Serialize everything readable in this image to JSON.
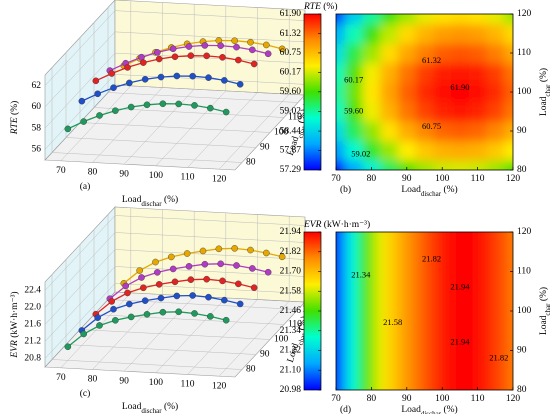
{
  "chart_data": [
    {
      "type": "line3d",
      "panel_label": "(a)",
      "xlabel": [
        "Load",
        "dischar",
        " (%)"
      ],
      "ylabel": [
        "Load",
        "char",
        " (%)"
      ],
      "zlabel": [
        "RTE",
        " (%)"
      ],
      "x": [
        70,
        75,
        80,
        85,
        90,
        95,
        100,
        105,
        110,
        115,
        120
      ],
      "xlim": [
        65,
        125
      ],
      "xticks": [
        70,
        80,
        90,
        100,
        110,
        120
      ],
      "ylim": [
        75,
        125
      ],
      "yticks": [
        80,
        90,
        100,
        110,
        120
      ],
      "zlim": [
        55,
        63
      ],
      "zticks": [
        56,
        58,
        60,
        62
      ],
      "series": [
        {
          "y": 80,
          "color": "#1f9a5c",
          "values": [
            57.3,
            58.07,
            58.72,
            59.25,
            59.67,
            59.96,
            60.14,
            60.2,
            60.14,
            59.96,
            59.67
          ]
        },
        {
          "y": 90,
          "color": "#2050c8",
          "values": [
            58.5,
            59.27,
            59.92,
            60.45,
            60.87,
            61.16,
            61.34,
            61.4,
            61.34,
            61.16,
            60.87
          ]
        },
        {
          "y": 100,
          "color": "#e02424",
          "values": [
            59.0,
            59.77,
            60.42,
            60.95,
            61.37,
            61.66,
            61.84,
            61.9,
            61.84,
            61.66,
            61.37
          ]
        },
        {
          "y": 110,
          "color": "#b03cc4",
          "values": [
            58.55,
            59.32,
            59.97,
            60.5,
            60.92,
            61.21,
            61.39,
            61.45,
            61.39,
            61.21,
            60.92
          ]
        },
        {
          "y": 120,
          "color": "#e6a800",
          "values": [
            57.6,
            58.37,
            59.02,
            59.55,
            59.97,
            60.26,
            60.44,
            60.5,
            60.44,
            60.26,
            59.97
          ]
        }
      ]
    },
    {
      "type": "heatmap",
      "panel_label": "(b)",
      "title": [
        "RTE",
        " (%)"
      ],
      "xlabel": [
        "Load",
        "dischar",
        " (%)"
      ],
      "ylabel": [
        "Load",
        "char",
        " (%)"
      ],
      "x": [
        70,
        75,
        80,
        85,
        90,
        95,
        100,
        105,
        110,
        115,
        120
      ],
      "y": [
        80,
        85,
        90,
        95,
        100,
        105,
        110,
        115,
        120
      ],
      "z": [
        [
          57.3,
          58.07,
          58.72,
          59.25,
          59.67,
          59.96,
          60.14,
          60.2,
          60.14,
          59.96,
          59.67
        ],
        [
          58.0,
          58.77,
          59.42,
          59.95,
          60.37,
          60.66,
          60.84,
          60.9,
          60.84,
          60.66,
          60.37
        ],
        [
          58.5,
          59.27,
          59.92,
          60.45,
          60.87,
          61.16,
          61.34,
          61.4,
          61.34,
          61.16,
          60.87
        ],
        [
          58.88,
          59.65,
          60.3,
          60.83,
          61.25,
          61.54,
          61.72,
          61.78,
          61.72,
          61.54,
          61.25
        ],
        [
          59.0,
          59.77,
          60.42,
          60.95,
          61.37,
          61.66,
          61.84,
          61.9,
          61.84,
          61.66,
          61.37
        ],
        [
          58.9,
          59.67,
          60.32,
          60.85,
          61.27,
          61.56,
          61.74,
          61.8,
          61.74,
          61.56,
          61.27
        ],
        [
          58.55,
          59.32,
          59.97,
          60.5,
          60.92,
          61.21,
          61.39,
          61.45,
          61.39,
          61.21,
          60.92
        ],
        [
          58.15,
          58.92,
          59.57,
          60.1,
          60.52,
          60.81,
          60.99,
          61.05,
          60.99,
          60.81,
          60.52
        ],
        [
          57.6,
          58.37,
          59.02,
          59.55,
          59.97,
          60.26,
          60.44,
          60.5,
          60.44,
          60.26,
          59.97
        ]
      ],
      "xlim": [
        70,
        120
      ],
      "xticks": [
        70,
        80,
        90,
        100,
        110,
        120
      ],
      "ylim": [
        80,
        120
      ],
      "yticks": [
        80,
        90,
        100,
        110,
        120
      ],
      "clim": [
        57.29,
        61.9
      ],
      "cticks": [
        57.29,
        57.87,
        58.44,
        59.02,
        {
          "value": 59.6,
          "label": "59.60"
        },
        60.17,
        60.75,
        61.32,
        {
          "value": 61.9,
          "label": "61.90"
        }
      ],
      "colormap": [
        "#0000ff",
        "#00a8ff",
        "#00ffd0",
        "#40e000",
        "#ffee00",
        "#ff8c00",
        "#ff0000"
      ],
      "annotations": [
        {
          "label": "61.90",
          "x": 105,
          "y": 101
        },
        {
          "label": "61.32",
          "x": 97,
          "y": 108
        },
        {
          "label": "60.17",
          "x": 75,
          "y": 103
        },
        {
          "label": "59.60",
          "x": 75,
          "y": 95
        },
        {
          "label": "60.75",
          "x": 97,
          "y": 91
        },
        {
          "label": "59.02",
          "x": 77,
          "y": 84
        }
      ]
    },
    {
      "type": "line3d",
      "panel_label": "(c)",
      "xlabel": [
        "Load",
        "dischar",
        " (%)"
      ],
      "ylabel": [
        "Load",
        "char",
        " (%)"
      ],
      "zlabel": [
        "EVR",
        " (kW·h·m⁻³)"
      ],
      "x": [
        70,
        75,
        80,
        85,
        90,
        95,
        100,
        105,
        110,
        115,
        120
      ],
      "xlim": [
        65,
        125
      ],
      "xticks": [
        70,
        80,
        90,
        100,
        110,
        120
      ],
      "ylim": [
        75,
        125
      ],
      "yticks": [
        80,
        90,
        100,
        110,
        120
      ],
      "zlim": [
        20.6,
        22.6
      ],
      "zticks": [
        20.8,
        21.2,
        21.6,
        {
          "value": 22,
          "label": "22.0"
        },
        22.4
      ],
      "series": [
        {
          "y": 80,
          "color": "#1f9a5c",
          "values": [
            20.92,
            21.24,
            21.46,
            21.6,
            21.7,
            21.78,
            21.85,
            21.88,
            21.86,
            21.81,
            21.74
          ]
        },
        {
          "y": 90,
          "color": "#2050c8",
          "values": [
            20.95,
            21.27,
            21.49,
            21.63,
            21.73,
            21.81,
            21.88,
            21.91,
            21.89,
            21.84,
            21.77
          ]
        },
        {
          "y": 100,
          "color": "#e02424",
          "values": [
            20.98,
            21.3,
            21.52,
            21.66,
            21.76,
            21.84,
            21.91,
            21.94,
            21.92,
            21.87,
            21.8
          ]
        },
        {
          "y": 110,
          "color": "#b03cc4",
          "values": [
            20.99,
            21.31,
            21.53,
            21.67,
            21.77,
            21.85,
            21.92,
            21.95,
            21.93,
            21.88,
            21.81
          ]
        },
        {
          "y": 120,
          "color": "#e6a800",
          "values": [
            21.0,
            21.32,
            21.54,
            21.68,
            21.78,
            21.86,
            21.93,
            21.96,
            21.94,
            21.89,
            21.82
          ]
        }
      ]
    },
    {
      "type": "heatmap",
      "panel_label": "(d)",
      "title": [
        "EVR",
        " (kW·h·m⁻³)"
      ],
      "xlabel": [
        "Load",
        "dischar",
        " (%)"
      ],
      "ylabel": [
        "Load",
        "char",
        " (%)"
      ],
      "x": [
        70,
        72.5,
        75,
        77.5,
        80,
        82.5,
        85,
        87.5,
        90,
        92.5,
        95,
        97.5,
        100,
        102.5,
        105,
        107.5,
        110,
        112.5,
        115,
        117.5,
        120
      ],
      "y": [
        100
      ],
      "z": [
        [
          20.98,
          21.16,
          21.3,
          21.42,
          21.52,
          21.6,
          21.66,
          21.71,
          21.76,
          21.8,
          21.84,
          21.87,
          21.91,
          21.93,
          21.94,
          21.94,
          21.92,
          21.9,
          21.87,
          21.84,
          21.8
        ]
      ],
      "xlim": [
        70,
        120
      ],
      "xticks": [
        70,
        80,
        90,
        100,
        110,
        120
      ],
      "ylim": [
        80,
        120
      ],
      "yticks": [
        80,
        90,
        100,
        110,
        120
      ],
      "clim": [
        20.98,
        21.94
      ],
      "cticks": [
        20.98,
        {
          "value": 21.1,
          "label": "21.10"
        },
        21.22,
        21.34,
        21.46,
        21.58,
        {
          "value": 21.7,
          "label": "21.70"
        },
        21.82,
        21.94
      ],
      "colormap": [
        "#0000ff",
        "#00a8ff",
        "#00ffd0",
        "#40e000",
        "#ffee00",
        "#ff8c00",
        "#ff0000"
      ],
      "annotations": [
        {
          "label": "21.34",
          "x": 77,
          "y": 109
        },
        {
          "label": "21.82",
          "x": 97,
          "y": 113
        },
        {
          "label": "21.58",
          "x": 86,
          "y": 97
        },
        {
          "label": "21.94",
          "x": 105,
          "y": 106
        },
        {
          "label": "21.94",
          "x": 105,
          "y": 92
        },
        {
          "label": "21.82",
          "x": 116,
          "y": 88
        }
      ]
    }
  ]
}
